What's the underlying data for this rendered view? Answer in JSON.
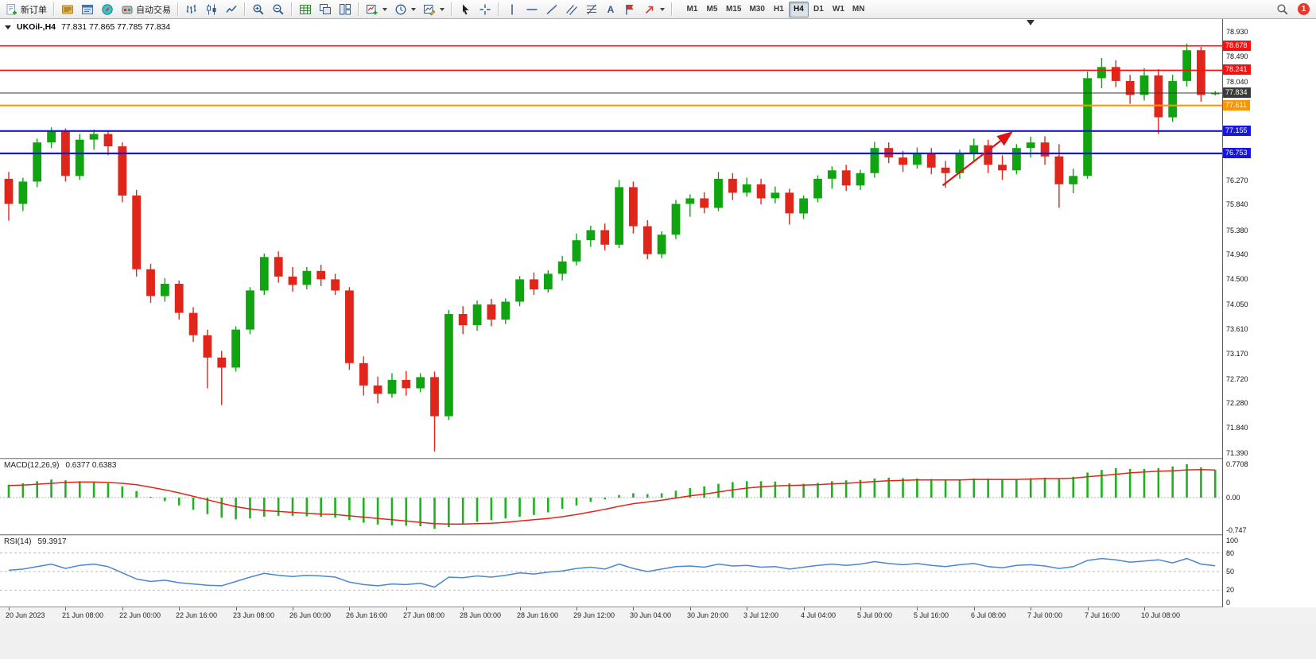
{
  "toolbar": {
    "new_order_label": "新订单",
    "autotrading_label": "自动交易",
    "text_tool_label": "A",
    "timeframes": [
      "M1",
      "M5",
      "M15",
      "M30",
      "H1",
      "H4",
      "D1",
      "W1",
      "MN"
    ],
    "active_timeframe": "H4",
    "notification_count": "1"
  },
  "colors": {
    "candle_up": "#10a510",
    "candle_down": "#e0261b",
    "macd_histogram": "#1db31d",
    "macd_signal": "#e0261b",
    "rsi_line": "#4b86cf",
    "resistance_line": "#f51111",
    "support_line": "#1717d9",
    "pivot_line": "#ff9400",
    "price_line": "#3a3a3a",
    "arrow": "#e01414"
  },
  "chart_data": {
    "type": "candlestick",
    "symbol_period_display": "UKOil-,H4",
    "ohlc_display": "77.831 77.865 77.785 77.834",
    "y_axis": {
      "min": 71.39,
      "max": 78.93,
      "ticks": [
        "78.930",
        "78.490",
        "78.040",
        "76.270",
        "75.840",
        "75.380",
        "74.940",
        "74.500",
        "74.050",
        "73.610",
        "73.170",
        "72.720",
        "72.280",
        "71.840",
        "71.390"
      ]
    },
    "price_badges": [
      {
        "value": "78.678",
        "type": "resistance"
      },
      {
        "value": "78.241",
        "type": "resistance"
      },
      {
        "value": "77.834",
        "type": "price"
      },
      {
        "value": "77.611",
        "type": "pivot"
      },
      {
        "value": "77.155",
        "type": "support"
      },
      {
        "value": "76.753",
        "type": "support"
      }
    ],
    "hlines": [
      {
        "price": 78.678,
        "type": "resistance",
        "width": 1.6
      },
      {
        "price": 78.241,
        "type": "resistance",
        "width": 1.6
      },
      {
        "price": 77.834,
        "type": "price",
        "width": 1.1
      },
      {
        "price": 77.611,
        "type": "pivot",
        "width": 2.2
      },
      {
        "price": 77.155,
        "type": "support",
        "width": 2.2
      },
      {
        "price": 76.753,
        "type": "support",
        "width": 2.2
      }
    ],
    "arrow": {
      "from_bar": 65.8,
      "from_price": 76.18,
      "to_bar": 70.6,
      "to_price": 77.12
    },
    "x_labels": [
      {
        "text": "20 Jun 2023",
        "bar": 0
      },
      {
        "text": "21 Jun 08:00",
        "bar": 4
      },
      {
        "text": "22 Jun 00:00",
        "bar": 8
      },
      {
        "text": "22 Jun 16:00",
        "bar": 12
      },
      {
        "text": "23 Jun 08:00",
        "bar": 16
      },
      {
        "text": "26 Jun 00:00",
        "bar": 20
      },
      {
        "text": "26 Jun 16:00",
        "bar": 24
      },
      {
        "text": "27 Jun 08:00",
        "bar": 28
      },
      {
        "text": "28 Jun 00:00",
        "bar": 32
      },
      {
        "text": "28 Jun 16:00",
        "bar": 36
      },
      {
        "text": "29 Jun 12:00",
        "bar": 40
      },
      {
        "text": "30 Jun 04:00",
        "bar": 44
      },
      {
        "text": "30 Jun 20:00",
        "bar": 48
      },
      {
        "text": "3 Jul 12:00",
        "bar": 52
      },
      {
        "text": "4 Jul 04:00",
        "bar": 56
      },
      {
        "text": "5 Jul 00:00",
        "bar": 60
      },
      {
        "text": "5 Jul 16:00",
        "bar": 64
      },
      {
        "text": "6 Jul 08:00",
        "bar": 68
      },
      {
        "text": "7 Jul 00:00",
        "bar": 72
      },
      {
        "text": "7 Jul 16:00",
        "bar": 76
      },
      {
        "text": "10 Jul 08:00",
        "bar": 80
      }
    ],
    "candles": [
      [
        76.3,
        76.42,
        75.55,
        75.85
      ],
      [
        75.85,
        76.32,
        75.72,
        76.25
      ],
      [
        76.25,
        77.02,
        76.15,
        76.95
      ],
      [
        76.95,
        77.22,
        76.85,
        77.15
      ],
      [
        77.15,
        77.2,
        76.25,
        76.35
      ],
      [
        76.35,
        77.1,
        76.28,
        77.0
      ],
      [
        77.0,
        77.18,
        76.82,
        77.1
      ],
      [
        77.1,
        77.16,
        76.72,
        76.88
      ],
      [
        76.88,
        76.95,
        75.88,
        76.0
      ],
      [
        76.0,
        76.1,
        74.55,
        74.68
      ],
      [
        74.68,
        74.78,
        74.08,
        74.2
      ],
      [
        74.2,
        74.52,
        74.1,
        74.42
      ],
      [
        74.42,
        74.48,
        73.78,
        73.9
      ],
      [
        73.9,
        74.0,
        73.38,
        73.5
      ],
      [
        73.5,
        73.6,
        72.55,
        73.1
      ],
      [
        73.1,
        73.22,
        72.25,
        72.92
      ],
      [
        72.92,
        73.66,
        72.85,
        73.6
      ],
      [
        73.6,
        74.36,
        73.52,
        74.3
      ],
      [
        74.3,
        74.96,
        74.22,
        74.9
      ],
      [
        74.9,
        75.0,
        74.44,
        74.55
      ],
      [
        74.55,
        74.72,
        74.28,
        74.4
      ],
      [
        74.4,
        74.72,
        74.32,
        74.65
      ],
      [
        74.65,
        74.76,
        74.38,
        74.5
      ],
      [
        74.5,
        74.6,
        74.22,
        74.3
      ],
      [
        74.3,
        74.36,
        72.88,
        73.0
      ],
      [
        73.0,
        73.12,
        72.42,
        72.6
      ],
      [
        72.6,
        72.76,
        72.28,
        72.45
      ],
      [
        72.45,
        72.82,
        72.38,
        72.7
      ],
      [
        72.7,
        72.86,
        72.42,
        72.55
      ],
      [
        72.55,
        72.82,
        72.48,
        72.75
      ],
      [
        72.75,
        72.85,
        71.42,
        72.05
      ],
      [
        72.05,
        73.95,
        71.98,
        73.88
      ],
      [
        73.88,
        74.02,
        73.52,
        73.68
      ],
      [
        73.68,
        74.12,
        73.58,
        74.05
      ],
      [
        74.05,
        74.15,
        73.66,
        73.78
      ],
      [
        73.78,
        74.16,
        73.7,
        74.1
      ],
      [
        74.1,
        74.56,
        74.02,
        74.5
      ],
      [
        74.5,
        74.62,
        74.22,
        74.32
      ],
      [
        74.32,
        74.66,
        74.26,
        74.6
      ],
      [
        74.6,
        74.92,
        74.48,
        74.82
      ],
      [
        74.82,
        75.32,
        74.75,
        75.2
      ],
      [
        75.2,
        75.46,
        75.08,
        75.38
      ],
      [
        75.38,
        75.5,
        75.02,
        75.12
      ],
      [
        75.12,
        76.28,
        75.06,
        76.15
      ],
      [
        76.15,
        76.25,
        75.32,
        75.45
      ],
      [
        75.45,
        75.56,
        74.86,
        74.95
      ],
      [
        74.95,
        75.36,
        74.88,
        75.3
      ],
      [
        75.3,
        75.92,
        75.22,
        75.85
      ],
      [
        75.85,
        76.02,
        75.62,
        75.95
      ],
      [
        75.95,
        76.06,
        75.68,
        75.78
      ],
      [
        75.78,
        76.42,
        75.72,
        76.3
      ],
      [
        76.3,
        76.4,
        75.92,
        76.05
      ],
      [
        76.05,
        76.32,
        75.98,
        76.2
      ],
      [
        76.2,
        76.3,
        75.84,
        75.95
      ],
      [
        75.95,
        76.16,
        75.86,
        76.05
      ],
      [
        76.05,
        76.12,
        75.48,
        75.68
      ],
      [
        75.68,
        76.0,
        75.58,
        75.95
      ],
      [
        75.95,
        76.36,
        75.88,
        76.3
      ],
      [
        76.3,
        76.52,
        76.12,
        76.45
      ],
      [
        76.45,
        76.55,
        76.08,
        76.18
      ],
      [
        76.18,
        76.46,
        76.1,
        76.4
      ],
      [
        76.4,
        76.96,
        76.32,
        76.85
      ],
      [
        76.85,
        76.95,
        76.58,
        76.68
      ],
      [
        76.68,
        76.8,
        76.42,
        76.55
      ],
      [
        76.55,
        76.86,
        76.48,
        76.75
      ],
      [
        76.75,
        76.85,
        76.38,
        76.5
      ],
      [
        76.5,
        76.62,
        76.14,
        76.4
      ],
      [
        76.4,
        76.82,
        76.3,
        76.75
      ],
      [
        76.75,
        77.02,
        76.62,
        76.9
      ],
      [
        76.9,
        77.0,
        76.4,
        76.55
      ],
      [
        76.55,
        76.72,
        76.28,
        76.45
      ],
      [
        76.45,
        76.92,
        76.38,
        76.85
      ],
      [
        76.85,
        77.05,
        76.68,
        76.95
      ],
      [
        76.95,
        77.06,
        76.55,
        76.7
      ],
      [
        76.7,
        76.92,
        75.78,
        76.2
      ],
      [
        76.2,
        76.48,
        76.04,
        76.35
      ],
      [
        76.35,
        78.22,
        76.3,
        78.1
      ],
      [
        78.1,
        78.46,
        77.92,
        78.3
      ],
      [
        78.3,
        78.42,
        77.94,
        78.05
      ],
      [
        78.05,
        78.16,
        77.64,
        77.8
      ],
      [
        77.8,
        78.28,
        77.7,
        78.15
      ],
      [
        78.15,
        78.26,
        77.1,
        77.4
      ],
      [
        77.4,
        78.16,
        77.32,
        78.05
      ],
      [
        78.05,
        78.72,
        77.95,
        78.6
      ],
      [
        78.6,
        78.66,
        77.68,
        77.8
      ],
      [
        77.83,
        77.87,
        77.79,
        77.83
      ]
    ],
    "indicators": {
      "macd": {
        "label": "MACD(12,26,9)",
        "values_display": "0.6377 0.6383",
        "max": 0.7708,
        "min": -0.747,
        "scale_labels": [
          "0.7708",
          "0.00",
          "-0.747"
        ],
        "histogram": [
          0.3,
          0.33,
          0.38,
          0.42,
          0.4,
          0.38,
          0.36,
          0.33,
          0.26,
          0.15,
          0.02,
          -0.08,
          -0.18,
          -0.28,
          -0.38,
          -0.46,
          -0.5,
          -0.48,
          -0.44,
          -0.42,
          -0.42,
          -0.43,
          -0.44,
          -0.46,
          -0.52,
          -0.58,
          -0.62,
          -0.64,
          -0.65,
          -0.66,
          -0.72,
          -0.68,
          -0.62,
          -0.56,
          -0.52,
          -0.48,
          -0.44,
          -0.4,
          -0.34,
          -0.26,
          -0.18,
          -0.1,
          -0.04,
          0.06,
          0.1,
          0.08,
          0.1,
          0.16,
          0.22,
          0.26,
          0.32,
          0.36,
          0.38,
          0.38,
          0.37,
          0.33,
          0.32,
          0.34,
          0.38,
          0.4,
          0.41,
          0.44,
          0.46,
          0.45,
          0.44,
          0.43,
          0.41,
          0.42,
          0.44,
          0.44,
          0.42,
          0.43,
          0.45,
          0.46,
          0.44,
          0.48,
          0.58,
          0.64,
          0.68,
          0.66,
          0.66,
          0.68,
          0.72,
          0.77,
          0.7,
          0.6377
        ],
        "signal": [
          0.28,
          0.29,
          0.31,
          0.33,
          0.35,
          0.36,
          0.36,
          0.35,
          0.33,
          0.3,
          0.24,
          0.18,
          0.11,
          0.03,
          -0.05,
          -0.13,
          -0.21,
          -0.26,
          -0.3,
          -0.32,
          -0.34,
          -0.36,
          -0.38,
          -0.39,
          -0.42,
          -0.45,
          -0.48,
          -0.51,
          -0.54,
          -0.57,
          -0.6,
          -0.61,
          -0.61,
          -0.6,
          -0.59,
          -0.57,
          -0.54,
          -0.51,
          -0.48,
          -0.44,
          -0.39,
          -0.33,
          -0.27,
          -0.2,
          -0.14,
          -0.1,
          -0.06,
          -0.01,
          0.04,
          0.08,
          0.13,
          0.18,
          0.22,
          0.25,
          0.27,
          0.28,
          0.29,
          0.3,
          0.32,
          0.33,
          0.35,
          0.37,
          0.39,
          0.4,
          0.41,
          0.41,
          0.41,
          0.41,
          0.42,
          0.42,
          0.42,
          0.42,
          0.43,
          0.44,
          0.44,
          0.45,
          0.48,
          0.51,
          0.54,
          0.57,
          0.59,
          0.61,
          0.62,
          0.64,
          0.645,
          0.6383
        ]
      },
      "rsi": {
        "label": "RSI(14)",
        "value_display": "59.3917",
        "scale_labels": [
          "100",
          "80",
          "50",
          "20",
          "0"
        ],
        "levels": [
          80,
          50,
          20
        ],
        "values": [
          52,
          54,
          58,
          62,
          55,
          60,
          62,
          58,
          48,
          38,
          34,
          36,
          32,
          30,
          28,
          27,
          34,
          41,
          47,
          44,
          42,
          44,
          43,
          41,
          33,
          29,
          27,
          30,
          29,
          31,
          25,
          41,
          40,
          43,
          41,
          44,
          48,
          46,
          49,
          51,
          55,
          57,
          54,
          62,
          55,
          50,
          54,
          58,
          59,
          57,
          62,
          59,
          60,
          57,
          58,
          54,
          57,
          60,
          62,
          60,
          62,
          66,
          63,
          61,
          63,
          60,
          58,
          61,
          63,
          58,
          56,
          60,
          61,
          59,
          55,
          58,
          68,
          71,
          69,
          65,
          67,
          69,
          64,
          71,
          62,
          59.39
        ]
      }
    }
  }
}
